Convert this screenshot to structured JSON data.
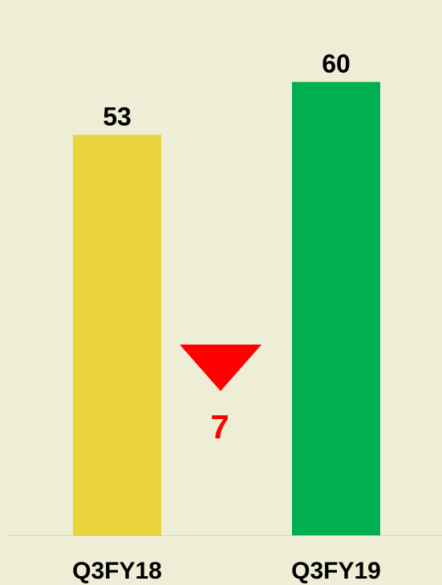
{
  "chart_data": {
    "type": "bar",
    "categories": [
      "Q3FY18",
      "Q3FY19"
    ],
    "values": [
      53,
      60
    ],
    "colors": [
      "#E8D43A",
      "#00B050"
    ],
    "ylim": [
      0,
      70
    ],
    "annotation": "7",
    "annotation_color": "#FF0000"
  }
}
